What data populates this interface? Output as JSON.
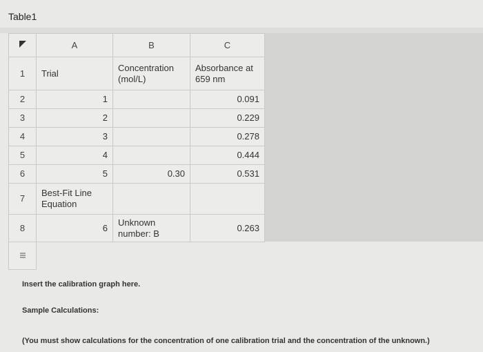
{
  "header": {
    "title": "Table1"
  },
  "table": {
    "columns": [
      "A",
      "B",
      "C"
    ],
    "rows": [
      {
        "number": "1",
        "cells": {
          "a": "Trial",
          "b": "Concentration (mol/L)",
          "c": "Absorbance at 659 nm"
        }
      },
      {
        "number": "2",
        "cells": {
          "a": "1",
          "c": "0.091"
        }
      },
      {
        "number": "3",
        "cells": {
          "a": "2",
          "c": "0.229"
        }
      },
      {
        "number": "4",
        "cells": {
          "a": "3",
          "c": "0.278"
        }
      },
      {
        "number": "5",
        "cells": {
          "a": "4",
          "c": "0.444"
        }
      },
      {
        "number": "6",
        "cells": {
          "a": "5",
          "b": "0.30",
          "c": "0.531"
        }
      },
      {
        "number": "7",
        "cells": {
          "a": "Best-Fit Line Equation"
        }
      },
      {
        "number": "8",
        "cells": {
          "a": "6",
          "b": "Unknown number: B",
          "c": "0.263"
        }
      }
    ]
  },
  "notes": {
    "graph": "Insert the calibration graph here.",
    "calculations": "Sample Calculations:",
    "instruction": "(You must show calculations for the concentration of one calibration trial and the concentration of the unknown.)"
  }
}
